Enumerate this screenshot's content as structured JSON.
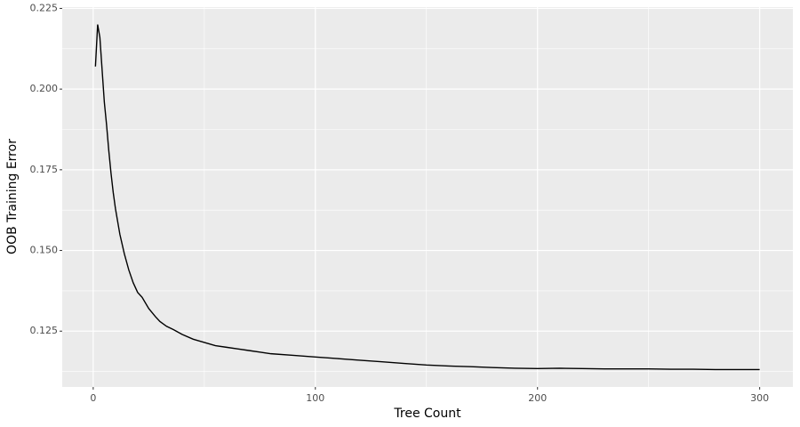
{
  "chart_data": {
    "type": "line",
    "x_label": "Tree Count",
    "y_label": "OOB Training Error",
    "x": [
      1,
      2,
      3,
      4,
      5,
      6,
      7,
      8,
      9,
      10,
      12,
      14,
      16,
      18,
      20,
      22,
      25,
      28,
      30,
      33,
      36,
      40,
      45,
      50,
      55,
      60,
      65,
      70,
      75,
      80,
      90,
      100,
      110,
      120,
      130,
      140,
      150,
      160,
      170,
      180,
      190,
      200,
      210,
      220,
      230,
      240,
      250,
      260,
      270,
      280,
      290,
      300
    ],
    "series": [
      {
        "color": "#000000",
        "values": [
          0.207,
          0.22,
          0.216,
          0.206,
          0.196,
          0.189,
          0.181,
          0.174,
          0.168,
          0.163,
          0.155,
          0.149,
          0.144,
          0.14,
          0.137,
          0.1355,
          0.132,
          0.1295,
          0.128,
          0.1265,
          0.1255,
          0.124,
          0.1225,
          0.1215,
          0.1205,
          0.12,
          0.1195,
          0.119,
          0.1185,
          0.118,
          0.1175,
          0.117,
          0.1165,
          0.116,
          0.1155,
          0.115,
          0.1145,
          0.1142,
          0.114,
          0.1137,
          0.1135,
          0.1134,
          0.1135,
          0.1134,
          0.1133,
          0.1133,
          0.1133,
          0.1132,
          0.1132,
          0.1131,
          0.1131,
          0.1131
        ]
      }
    ],
    "xlim": [
      -13.95,
      314.95
    ],
    "ylim": [
      0.1077,
      0.2254
    ],
    "xticks": [
      0,
      100,
      200,
      300
    ],
    "yticks": [
      0.125,
      {
        "value": 0.15,
        "label": "0.150"
      },
      0.175,
      {
        "value": 0.2,
        "label": "0.200"
      },
      0.225
    ],
    "xminor": [
      50,
      150,
      250
    ],
    "yminor": [
      0.1125,
      0.1375,
      0.1625,
      0.1875,
      0.2125
    ],
    "grid": true,
    "background": "#ebebeb"
  }
}
